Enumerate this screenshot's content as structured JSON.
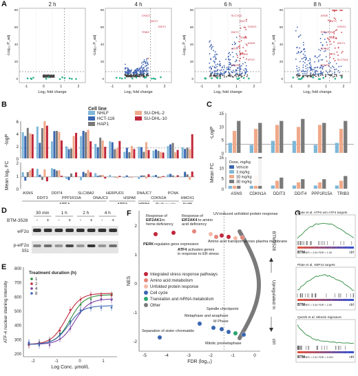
{
  "panels": {
    "A": {
      "letter": "A",
      "titles": [
        "2 h",
        "4 h",
        "6 h",
        "8 h"
      ],
      "xlabel": "Log₂ fold change",
      "ylabel": "-Log₁₀ P_adj",
      "tick_labels_x": [
        "-1",
        "0",
        "1",
        "2"
      ],
      "tick_labels_y": [
        "0",
        "20",
        "40",
        "60",
        "80"
      ],
      "labels_4h": [
        "CHAC1",
        "DDIT3",
        "DDIT4",
        "TRIB3"
      ],
      "labels_6h": [
        "SLC7A11",
        "DDIT4",
        "CHAC1",
        "DDIT3",
        "TRIB3",
        "ASNS",
        "ATF3",
        "SESN2",
        "XPOT",
        "VEGFA"
      ],
      "labels_8h": [
        "ASNS",
        "DDIT4",
        "CHAC1",
        "PPP1R15A",
        "TRIB3",
        "DDIT3",
        "SESN2",
        "ATF3",
        "SLC7A11",
        "VEGFA"
      ]
    },
    "B": {
      "letter": "B",
      "legend_title": "Cell line",
      "legend": [
        {
          "name": "NHLF",
          "color": "#7fb7d8"
        },
        {
          "name": "HCT-116",
          "color": "#3a66b0"
        },
        {
          "name": "HAP1",
          "color": "#7a7a7a"
        },
        {
          "name": "SU-DHL-2",
          "color": "#f0a98a"
        },
        {
          "name": "SU-DHL-10",
          "color": "#c0263a"
        }
      ],
      "ylabel_top": "-logP",
      "ylabel_bottom": "Mean log₂ FC",
      "ticks_top": [
        "6",
        "4",
        "2",
        "0"
      ],
      "ticks_bottom": [
        "2",
        "1",
        "0"
      ],
      "genes_row1": [
        "ASNS",
        "DDIT4",
        "SLC38A2",
        "HERPUD1",
        "DNAJC7",
        "PCNA"
      ],
      "genes_row2": [
        "DDIT3",
        "PPP1R15A",
        "DNAJC3",
        "HSPA8",
        "CDKN1A",
        "HMOX1"
      ],
      "groups": [
        "ATF4",
        "ATF6",
        "XBP1",
        "Cell cycle",
        "Nrf2"
      ]
    },
    "C": {
      "letter": "C",
      "ylabel_top": "-LogP",
      "ylabel_bottom": "Mean FC",
      "ticks_top": [
        "15",
        "10",
        "5",
        "0"
      ],
      "ticks_bottom": [
        "15",
        "10",
        "5",
        "0"
      ],
      "legend_title": "Dose, mg/kg",
      "legend": [
        {
          "name": "Vehicle",
          "color": "#3a66b0"
        },
        {
          "name": "3 mg/kg",
          "color": "#7fb7d8"
        },
        {
          "name": "10 mg/kg",
          "color": "#f0a98a"
        },
        {
          "name": "30 mg/kg",
          "color": "#7a7a7a"
        }
      ],
      "genes": [
        "ASNS",
        "CDKN1A",
        "DDIT3",
        "DDIT4",
        "PPP1R15A",
        "TRIB3"
      ]
    },
    "D": {
      "letter": "D",
      "times": [
        "30 min",
        "1 h",
        "2 h",
        "4 h"
      ],
      "treatment_label": "BTM-3528",
      "signs": [
        "-",
        "+",
        "-",
        "+",
        "-",
        "+",
        "-",
        "+"
      ],
      "band1": "eIF2α",
      "band2": "p-eIF2α",
      "band2_sub": "S51"
    },
    "E": {
      "letter": "E",
      "legend_title": "Treatment duration (h)",
      "legend": [
        {
          "name": "1",
          "color": "#2d8a3e"
        },
        {
          "name": "2",
          "color": "#c0263a"
        },
        {
          "name": "4",
          "color": "#7b3fa0"
        },
        {
          "name": "8",
          "color": "#3a66b0"
        }
      ],
      "ylabel": "ATF-4 nuclear staining intensity",
      "xlabel": "Log Conc. µmol/L",
      "ticks_y": [
        "800",
        "700",
        "600",
        "500",
        "400",
        "300",
        "200"
      ],
      "ticks_x": [
        "-2",
        "-1",
        "0",
        "1"
      ]
    },
    "F": {
      "letter": "F",
      "ylabel": "NES",
      "xlabel": "FDR (log₁₀)",
      "ticks_y": [
        "2",
        "1",
        "0",
        "-1",
        "-2"
      ],
      "ticks_x": [
        "-5",
        "-4",
        "-3",
        "-2",
        "-1",
        "0"
      ],
      "right_top": "BTM3528",
      "right_mid": "Upregulated in",
      "right_bot": "ctrl",
      "annotations": {
        "perk_bold": "PERK",
        "perk_rest": "regulates gene expression",
        "eif2ak1_line1": "Response of",
        "eif2ak1_bold": "EIF2AK1",
        "eif2ak1_rest": "to heme deficiency",
        "eif2ak4_line1": "Response of",
        "eif2ak4_bold": "EIF2AK4",
        "eif2ak4_rest": "to amino acid deficiency",
        "uv": "UV-induced unfolded protein response",
        "atf4_bold": "ATF4",
        "atf4_rest": "activates genes in response to ER stress",
        "amino": "Amino acid transport across plasma membrane",
        "separation": "Separation of sister chromatids",
        "metaphase": "Metaphase and anaphase",
        "spindle": "Spindle checkpoint",
        "mphase": "M Phase",
        "mitotic": "Mitotic prometaphase"
      },
      "legend": [
        {
          "name": "Integrated stress response pathways",
          "color": "#c0263a"
        },
        {
          "name": "Amino acid metabolism",
          "color": "#e5857a"
        },
        {
          "name": "Unfolded protein response",
          "color": "#f5b9a8"
        },
        {
          "name": "Cell cycle",
          "color": "#3a66b0"
        },
        {
          "name": "Translation and mRNA metabolism",
          "color": "#2aa66e"
        },
        {
          "name": "Other",
          "color": "#7a7a7a"
        }
      ]
    },
    "G": {
      "letter": "G",
      "plots": [
        {
          "title": "Plate et al. ATF6 w/o ATF4 targets",
          "stats": "NES = 2.60  FDR < 1.00"
        },
        {
          "title": "Plate et al. XBP1s targets",
          "stats": "NES = 3.54  FDR < 2.90"
        },
        {
          "title": "Quirds et al. Mitosis Signature",
          "stats": "NES = 2.51 FDR < 0.001"
        }
      ],
      "left_label": "BTM",
      "right_label": "ctrl"
    }
  }
}
